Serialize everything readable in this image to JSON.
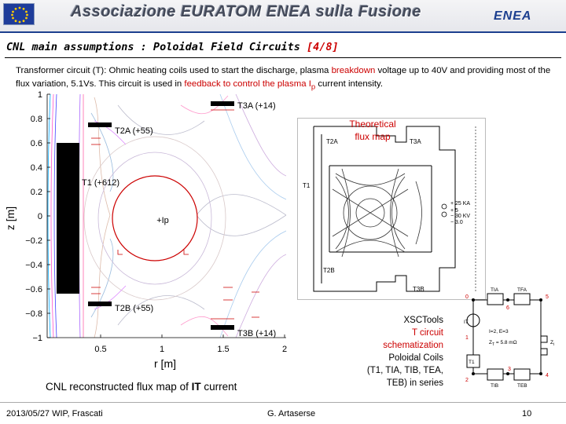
{
  "header": {
    "title": "Associazione EURATOM ENEA sulla Fusione",
    "logo_text": "ENEA",
    "colors": {
      "brand": "#1c3f8f",
      "flag": "#1e3c9a",
      "stars": "#ffcc00"
    }
  },
  "slide": {
    "title_main": "CNL main assumptions : Poloidal Field Circuits",
    "title_num": "[4/8]",
    "intro": {
      "p1": "Transformer circuit (T): Ohmic heating coils used to start the discharge, plasma ",
      "p2": "breakdown",
      "p3": " voltage up to 40V and providing most of the flux variation, 5.1Vs. This circuit is used in ",
      "p4": "feedback to control the plasma I",
      "p4_sub": "p",
      "p5": " current intensity."
    }
  },
  "flux_map": {
    "ylabel": "z [m]",
    "xlabel": "r [m]",
    "yticks": [
      "1",
      "0.8",
      "0.6",
      "0.4",
      "0.2",
      "0",
      "−0.2",
      "−0.4",
      "−0.6",
      "−0.8",
      "−1"
    ],
    "xticks": [
      "0.5",
      "1",
      "1.5",
      "2"
    ],
    "coils": {
      "t3a": "T3A (+14)",
      "t2a": "T2A (+55)",
      "t1": "T1 (+612)",
      "t2b": "T2B (+55)",
      "t3b": "T3B (+14)"
    },
    "plasma_label": "+Ip",
    "caption_pre": "CNL reconstructed flux map of ",
    "caption_bold": "IT",
    "caption_post": " current"
  },
  "theoretical": {
    "label": "Theoretical flux map",
    "coil_labels": {
      "t2a": "T2A",
      "t3a": "T3A",
      "t1": "T1",
      "t2b": "T2B",
      "t3b": "T3B"
    },
    "legend_plus": "+ 25 KA",
    "legend_minus": "− 30 KV",
    "legend_plus2": "+ 5",
    "legend_minus2": "− 3.0"
  },
  "circuit": {
    "description": {
      "line1": "XSCTools",
      "line2": "T circuit",
      "line3": "schematization",
      "line4": "Poloidal Coils",
      "line5": "(T1, TIA, TIB, TEA,",
      "line6": "TEB) in series"
    },
    "labels": {
      "tia": "TIA",
      "tfa": "TFA",
      "it": "IT",
      "t1": "T1",
      "tib": "TIB",
      "teb": "TEB",
      "params": "I=2, E=3",
      "zt": "Z",
      "zt_sub": "T",
      "zt_val": " = 5.8 mΩ",
      "zi": "Z",
      "zi_sub": "i"
    },
    "nodes": [
      "0",
      "6",
      "5",
      "1",
      "2",
      "3",
      "4"
    ]
  },
  "footer": {
    "date": "2013/05/27   WIP, Frascati",
    "author": "G. Artaserse",
    "page": "10"
  }
}
